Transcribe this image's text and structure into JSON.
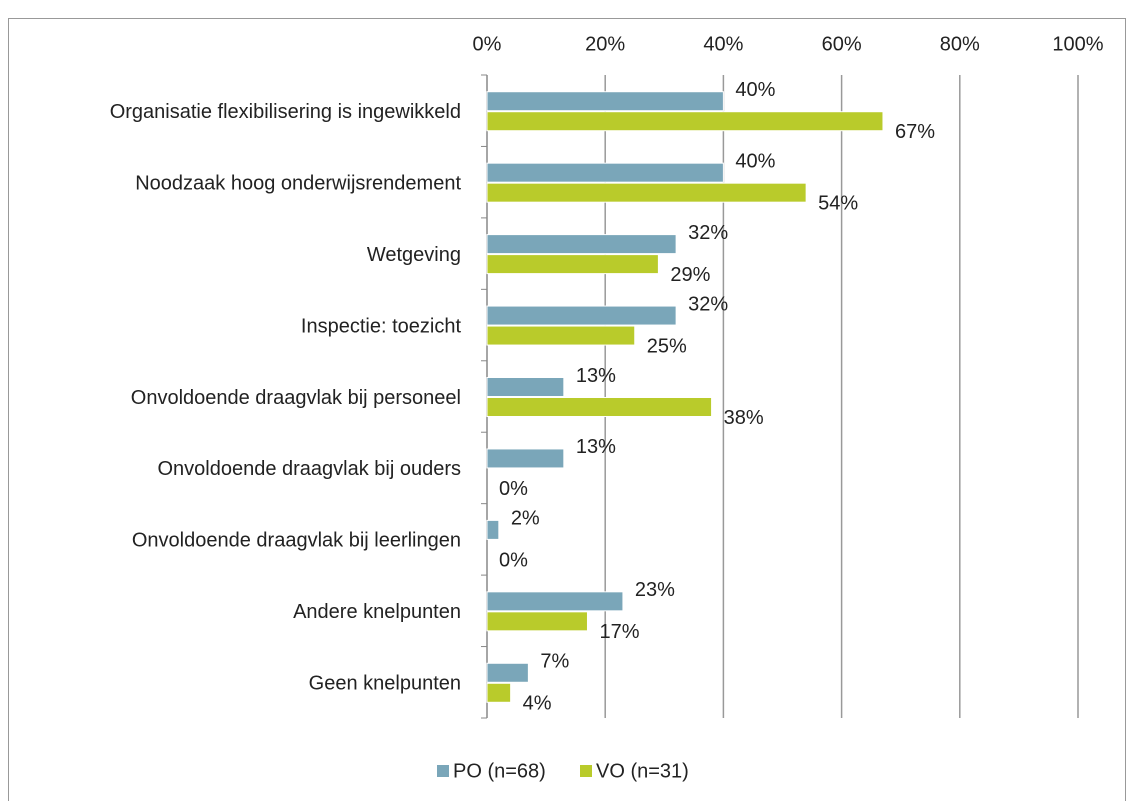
{
  "chart_data": {
    "type": "hbar",
    "categories": [
      "Organisatie  flexibilisering is ingewikkeld",
      "Noodzaak hoog onderwijsrendement",
      "Wetgeving",
      "Inspectie: toezicht",
      "Onvoldoende draagvlak bij personeel",
      "Onvoldoende draagvlak bij ouders",
      "Onvoldoende draagvlak bij leerlingen",
      "Andere knelpunten",
      "Geen knelpunten"
    ],
    "series": [
      {
        "name": "PO (n=68)",
        "color": "#7aa6b9",
        "values": [
          40,
          40,
          32,
          32,
          13,
          13,
          2,
          23,
          7
        ],
        "value_labels": [
          "40%",
          "40%",
          "32%",
          "32%",
          "13%",
          "13%",
          "2%",
          "23%",
          "7%"
        ]
      },
      {
        "name": "VO (n=31)",
        "color": "#b9cb2b",
        "values": [
          67,
          54,
          29,
          25,
          38,
          0,
          0,
          17,
          4
        ],
        "value_labels": [
          "67%",
          "54%",
          "29%",
          "25%",
          "38%",
          "0%",
          "0%",
          "17%",
          "4%"
        ]
      }
    ],
    "xlim": [
      0,
      100
    ],
    "xticks": [
      {
        "value": 0,
        "label": "0%"
      },
      {
        "value": 20,
        "label": "20%"
      },
      {
        "value": 40,
        "label": "40%"
      },
      {
        "value": 60,
        "label": "60%"
      },
      {
        "value": 80,
        "label": "80%"
      },
      {
        "value": 100,
        "label": "100%"
      }
    ],
    "grid": true,
    "legend": "bottom"
  }
}
